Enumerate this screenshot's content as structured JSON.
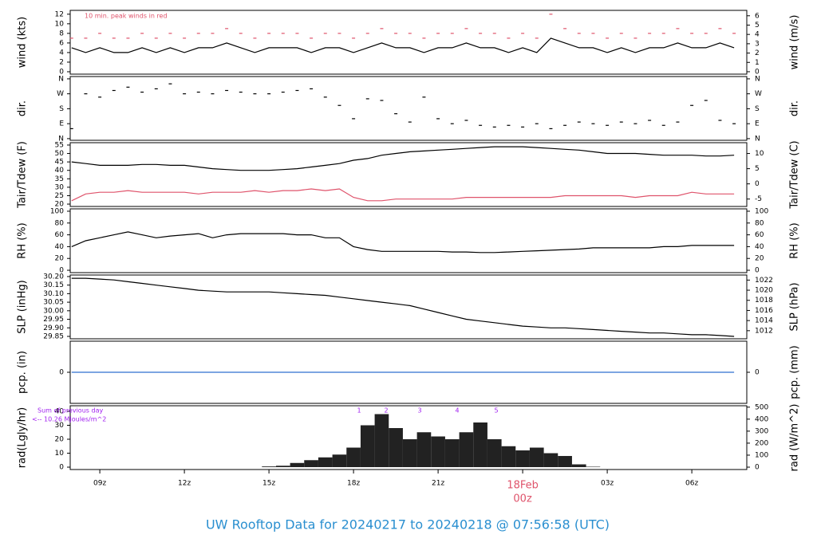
{
  "chart_data": {
    "type": "panels",
    "title": "UW Rooftop Data for 20240217  to  20240218 @ 07:56:58  (UTC)",
    "xlim": [
      7.95,
      31.95
    ],
    "xticks": [
      {
        "value": 9,
        "label": "09z"
      },
      {
        "value": 12,
        "label": "12z"
      },
      {
        "value": 15,
        "label": "15z"
      },
      {
        "value": 18,
        "label": "18z"
      },
      {
        "value": 21,
        "label": "21z"
      },
      {
        "value": 24,
        "label": "00z"
      },
      {
        "value": 27,
        "label": "03z"
      },
      {
        "value": 30,
        "label": "06z"
      }
    ],
    "date_label": "18Feb",
    "x": [
      8,
      8.5,
      9,
      9.5,
      10,
      10.5,
      11,
      11.5,
      12,
      12.5,
      13,
      13.5,
      14,
      14.5,
      15,
      15.5,
      16,
      16.5,
      17,
      17.5,
      18,
      18.5,
      19,
      19.5,
      20,
      20.5,
      21,
      21.5,
      22,
      22.5,
      23,
      23.5,
      24,
      24.5,
      25,
      25.5,
      26,
      26.5,
      27,
      27.5,
      28,
      28.5,
      29,
      29.5,
      30,
      30.5,
      31,
      31.5
    ],
    "panels": [
      {
        "type": "line",
        "ylabel": "wind (kts)",
        "y2label": "wind (m/s)",
        "annotation": "10 min. peak winds in red",
        "ylim": [
          -0.5,
          12.8
        ],
        "yticks": [
          0,
          2,
          4,
          6,
          8,
          10,
          12
        ],
        "y2lim": [
          -0.26,
          6.58
        ],
        "y2ticks": [
          0,
          1,
          2,
          3,
          4,
          5,
          6
        ],
        "series": [
          {
            "style": "line",
            "color": "#000000",
            "values": [
              5,
              4,
              5,
              4,
              4,
              5,
              4,
              5,
              4,
              5,
              5,
              6,
              5,
              4,
              5,
              5,
              5,
              4,
              5,
              5,
              4,
              5,
              6,
              5,
              5,
              4,
              5,
              5,
              6,
              5,
              5,
              4,
              5,
              4,
              7,
              6,
              5,
              5,
              4,
              5,
              4,
              5,
              5,
              6,
              5,
              5,
              6,
              5
            ]
          },
          {
            "style": "dash",
            "color": "#df536b",
            "values": [
              7,
              7,
              8,
              7,
              7,
              8,
              7,
              8,
              7,
              8,
              8,
              9,
              8,
              7,
              8,
              8,
              8,
              7,
              8,
              8,
              7,
              8,
              9,
              8,
              8,
              7,
              8,
              8,
              9,
              8,
              8,
              7,
              8,
              7,
              12,
              9,
              8,
              8,
              7,
              8,
              7,
              8,
              8,
              9,
              8,
              8,
              9,
              8
            ]
          }
        ]
      },
      {
        "type": "scatter",
        "ylabel": "dir.",
        "y2label": "dir.",
        "ylim": [
          -10,
          374
        ],
        "yticks": [
          {
            "value": 0,
            "label": "N"
          },
          {
            "value": 90,
            "label": "E"
          },
          {
            "value": 180,
            "label": "S"
          },
          {
            "value": 270,
            "label": "W"
          },
          {
            "value": 360,
            "label": "N"
          }
        ],
        "y2lim": [
          -10,
          374
        ],
        "y2ticks": [
          {
            "value": 0,
            "label": "N"
          },
          {
            "value": 90,
            "label": "E"
          },
          {
            "value": 180,
            "label": "S"
          },
          {
            "value": 270,
            "label": "W"
          },
          {
            "value": 360,
            "label": "N"
          }
        ],
        "series": [
          {
            "style": "dash",
            "color": "#000000",
            "values": [
              60,
              270,
              250,
              290,
              310,
              280,
              300,
              330,
              270,
              280,
              270,
              290,
              280,
              270,
              270,
              280,
              290,
              300,
              250,
              200,
              120,
              240,
              230,
              150,
              100,
              250,
              120,
              90,
              110,
              80,
              70,
              80,
              70,
              90,
              60,
              80,
              100,
              90,
              80,
              100,
              90,
              110,
              80,
              100,
              200,
              230,
              110,
              90
            ]
          }
        ]
      },
      {
        "type": "line",
        "ylabel": "Tair/Tdew (F)",
        "y2label": "Tair/Tdew (C)",
        "ylim": [
          18.6,
          56.4
        ],
        "yticks": [
          20,
          25,
          30,
          35,
          40,
          45,
          50,
          55
        ],
        "y2lim": [
          -7.44,
          13.56
        ],
        "y2ticks": [
          -5,
          0,
          5,
          10
        ],
        "series": [
          {
            "style": "line",
            "color": "#000000",
            "values": [
              45,
              44,
              43,
              43,
              43,
              43.5,
              43.5,
              43,
              43,
              42,
              41,
              40.5,
              40,
              40,
              40,
              40.5,
              41,
              42,
              43,
              44,
              46,
              47,
              49,
              50,
              51,
              51.5,
              52,
              52.5,
              53,
              53.5,
              54,
              54,
              54,
              53.5,
              53,
              52.5,
              52,
              51,
              50,
              50,
              50,
              49.5,
              49,
              49,
              49,
              48.5,
              48.5,
              49
            ]
          },
          {
            "style": "line",
            "color": "#df536b",
            "values": [
              22,
              26,
              27,
              27,
              28,
              27,
              27,
              27,
              27,
              26,
              27,
              27,
              27,
              28,
              27,
              28,
              28,
              29,
              28,
              29,
              24,
              22,
              22,
              23,
              23,
              23,
              23,
              23,
              24,
              24,
              24,
              24,
              24,
              24,
              24,
              25,
              25,
              25,
              25,
              25,
              24,
              25,
              25,
              25,
              27,
              26,
              26,
              26
            ]
          }
        ]
      },
      {
        "type": "line",
        "ylabel": "RH (%)",
        "y2label": "RH (%)",
        "ylim": [
          -4,
          104
        ],
        "yticks": [
          0,
          20,
          40,
          60,
          80,
          100
        ],
        "y2lim": [
          -4,
          104
        ],
        "y2ticks": [
          0,
          20,
          40,
          60,
          80,
          100
        ],
        "series": [
          {
            "style": "line",
            "color": "#000000",
            "values": [
              40,
              50,
              55,
              60,
              65,
              60,
              55,
              58,
              60,
              62,
              55,
              60,
              62,
              62,
              62,
              62,
              60,
              60,
              55,
              55,
              40,
              35,
              32,
              32,
              32,
              32,
              32,
              31,
              31,
              30,
              30,
              31,
              32,
              33,
              34,
              35,
              36,
              38,
              38,
              38,
              38,
              38,
              40,
              40,
              42,
              42,
              42,
              42
            ]
          }
        ]
      },
      {
        "type": "line",
        "ylabel": "SLP (inHg)",
        "y2label": "SLP (hPa)",
        "ylim": [
          29.836,
          30.209
        ],
        "yticks": [
          {
            "value": 29.85,
            "label": "29.85"
          },
          {
            "value": 29.9,
            "label": "29.90"
          },
          {
            "value": 29.95,
            "label": "29.95"
          },
          {
            "value": 30,
            "label": "30.00"
          },
          {
            "value": 30.05,
            "label": "30.05"
          },
          {
            "value": 30.1,
            "label": "30.10"
          },
          {
            "value": 30.15,
            "label": "30.15"
          },
          {
            "value": 30.2,
            "label": "30.20"
          }
        ],
        "y2lim": [
          1010.4,
          1023.0
        ],
        "y2ticks": [
          1012,
          1014,
          1016,
          1018,
          1020,
          1022
        ],
        "series": [
          {
            "style": "line",
            "color": "#000000",
            "values": [
              30.19,
              30.19,
              30.185,
              30.18,
              30.17,
              30.16,
              30.15,
              30.14,
              30.13,
              30.12,
              30.115,
              30.11,
              30.11,
              30.11,
              30.11,
              30.105,
              30.1,
              30.095,
              30.09,
              30.08,
              30.07,
              30.06,
              30.05,
              30.04,
              30.03,
              30.01,
              29.99,
              29.97,
              29.95,
              29.94,
              29.93,
              29.92,
              29.91,
              29.905,
              29.9,
              29.9,
              29.895,
              29.89,
              29.885,
              29.88,
              29.875,
              29.87,
              29.87,
              29.865,
              29.86,
              29.86,
              29.855,
              29.85
            ]
          }
        ]
      },
      {
        "type": "line",
        "ylabel": "pcp. (in)",
        "y2label": "pcp. (mm)",
        "ylim": [
          -1,
          1
        ],
        "yticks": [
          0
        ],
        "y2lim": [
          -1,
          1
        ],
        "y2ticks": [
          0
        ],
        "series": [
          {
            "style": "line",
            "color": "#2f6fd0",
            "values": [
              0,
              0,
              0,
              0,
              0,
              0,
              0,
              0,
              0,
              0,
              0,
              0,
              0,
              0,
              0,
              0,
              0,
              0,
              0,
              0,
              0,
              0,
              0,
              0,
              0,
              0,
              0,
              0,
              0,
              0,
              0,
              0,
              0,
              0,
              0,
              0,
              0,
              0,
              0,
              0,
              0,
              0,
              0,
              0,
              0,
              0,
              0,
              0
            ]
          }
        ]
      },
      {
        "type": "bar",
        "ylabel": "rad(Lgly/hr)",
        "y2label": "rad (W/m^2)",
        "annotation": "Sum of previous day",
        "annotation2": "<-- 10.26 MJoules/m^2",
        "markers": [
          "1",
          "2",
          "3",
          "4",
          "5"
        ],
        "ylim": [
          -1.7,
          44
        ],
        "yticks": [
          0,
          10,
          20,
          30,
          40
        ],
        "y2lim": [
          -19.8,
          511.7
        ],
        "y2ticks": [
          0,
          100,
          200,
          300,
          400,
          500
        ],
        "series": [
          {
            "style": "bar",
            "color": "#222222",
            "values": [
              0,
              0,
              0,
              0,
              0,
              0,
              0,
              0,
              0,
              0,
              0,
              0,
              0,
              0,
              0.5,
              1,
              3,
              5,
              7,
              9,
              14,
              30,
              38,
              28,
              20,
              25,
              22,
              20,
              25,
              32,
              20,
              15,
              12,
              14,
              10,
              8,
              2,
              0.3,
              0,
              0,
              0,
              0,
              0,
              0,
              0,
              0,
              0,
              0
            ]
          }
        ]
      }
    ]
  }
}
